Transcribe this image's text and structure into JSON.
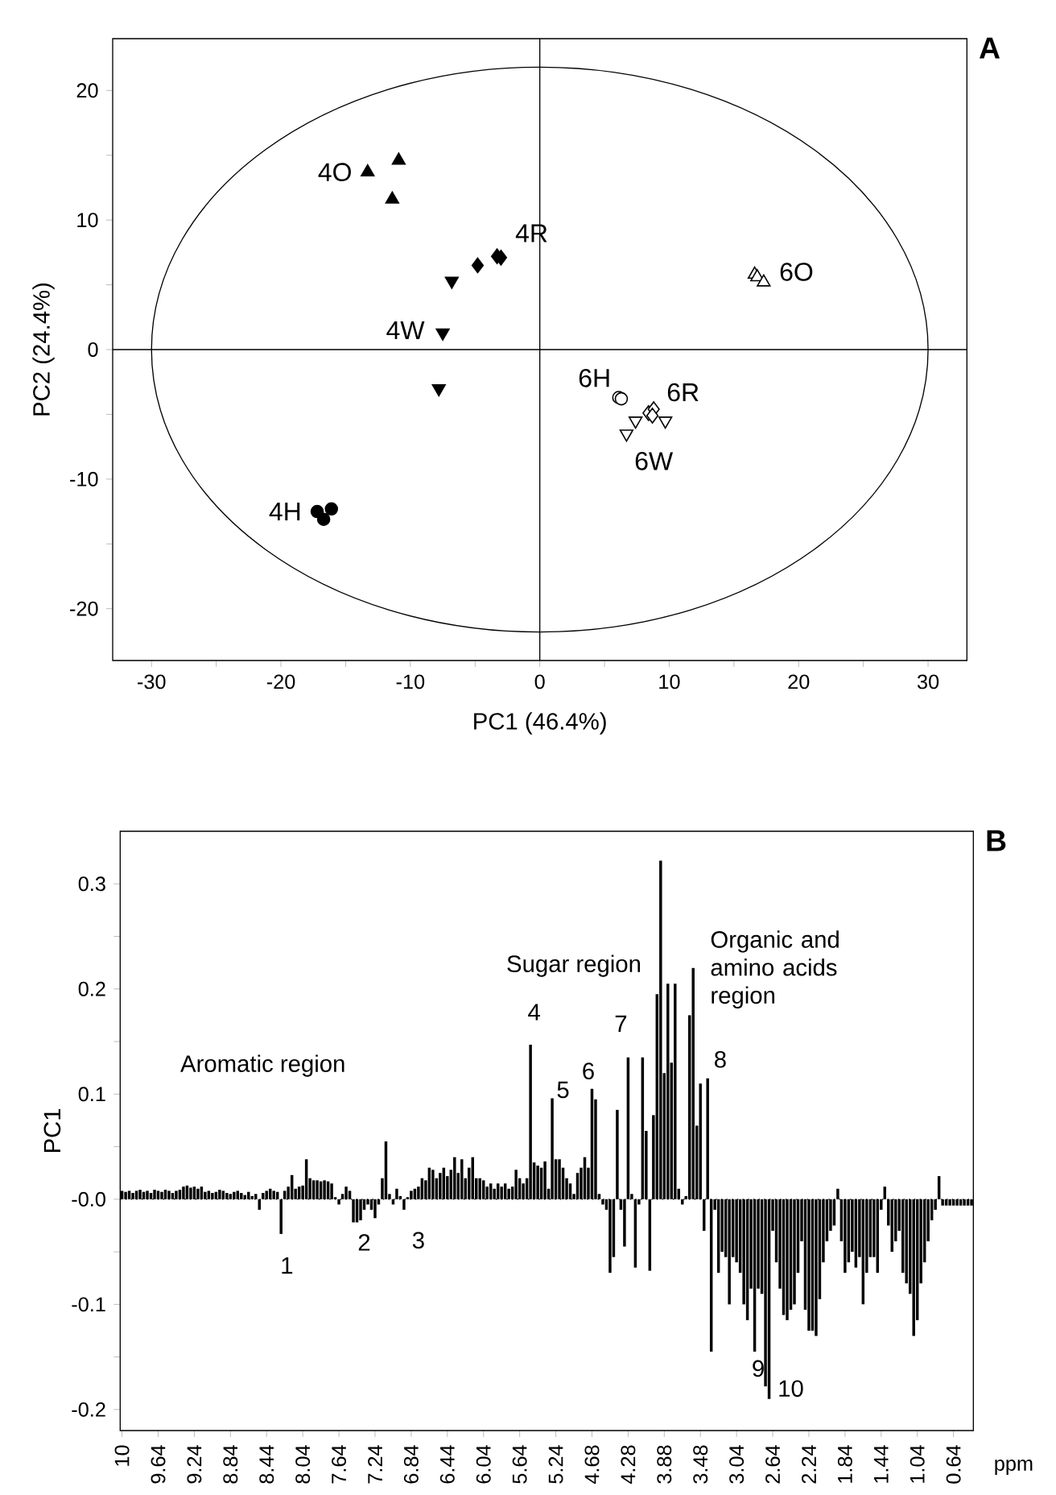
{
  "chart_data": [
    {
      "type": "scatter",
      "title": "A",
      "xlabel": "PC1 (46.4%)",
      "ylabel": "PC2 (24.4%)",
      "xlim": [
        -33,
        33
      ],
      "ylim": [
        -24,
        24
      ],
      "xticks": [
        -30,
        {
          "value": -25,
          "label": null
        },
        -20,
        {
          "value": -15,
          "label": null
        },
        -10,
        {
          "value": -5,
          "label": null
        },
        0,
        {
          "value": 5,
          "label": null
        },
        10,
        {
          "value": 15,
          "label": null
        },
        20,
        {
          "value": 25,
          "label": null
        },
        30
      ],
      "yticks": [
        -20,
        {
          "value": -15,
          "label": null
        },
        -10,
        {
          "value": -5,
          "label": null
        },
        0,
        {
          "value": 5,
          "label": null
        },
        10,
        {
          "value": 15,
          "label": null
        },
        20
      ],
      "ref_lines": [
        {
          "axis": "x",
          "value": 0
        },
        {
          "axis": "y",
          "value": 0
        }
      ],
      "series": [
        {
          "name": "4O",
          "color": "#000000",
          "marker": "triangle",
          "x": [
            -13.3,
            -10.9,
            -11.4
          ],
          "values": [
            13.7,
            14.6,
            11.6
          ]
        },
        {
          "name": "4R",
          "color": "#000000",
          "marker": "diamond",
          "x": [
            -4.8,
            -3.3,
            -3.0
          ],
          "values": [
            6.5,
            7.2,
            7.1
          ]
        },
        {
          "name": "4W",
          "color": "#000000",
          "marker": "triangle-down",
          "x": [
            -6.8,
            -7.5,
            -7.8
          ],
          "values": [
            5.3,
            1.3,
            -3.0
          ]
        },
        {
          "name": "4H",
          "color": "#000000",
          "marker": "circle",
          "x": [
            -17.2,
            -16.1,
            -16.7
          ],
          "values": [
            -12.5,
            -12.3,
            -13.1
          ]
        },
        {
          "name": "6O",
          "color": "#ffffff",
          "marker": "triangle",
          "x": [
            16.6,
            16.8,
            17.3
          ],
          "values": [
            5.8,
            5.6,
            5.2
          ]
        },
        {
          "name": "6H",
          "color": "#ffffff",
          "marker": "circle",
          "x": [
            6.1,
            6.3
          ],
          "values": [
            -3.7,
            -3.8
          ]
        },
        {
          "name": "6R",
          "color": "#ffffff",
          "marker": "diamond",
          "x": [
            8.4,
            8.8,
            8.7
          ],
          "values": [
            -4.9,
            -4.6,
            -5.1
          ]
        },
        {
          "name": "6W",
          "color": "#ffffff",
          "marker": "triangle-down",
          "x": [
            6.7,
            7.4,
            9.7
          ],
          "values": [
            -6.5,
            -5.5,
            -5.5
          ]
        }
      ]
    },
    {
      "type": "bar",
      "title": "B",
      "xlabel": "ppm",
      "ylabel": "PC1",
      "color": "#000000",
      "ylim": [
        -0.22,
        0.35
      ],
      "yticks": [
        -0.2,
        {
          "value": -0.15,
          "label": null
        },
        -0.1,
        {
          "value": -0.05,
          "label": null
        },
        {
          "value": 0,
          "label": "-0.0"
        },
        {
          "value": 0.05,
          "label": null
        },
        0.1,
        {
          "value": 0.15,
          "label": null
        },
        0.2,
        {
          "value": 0.25,
          "label": null
        },
        0.3
      ],
      "ref_lines": [
        {
          "axis": "y",
          "value": 0,
          "line_style": "dotted"
        }
      ],
      "annotations": [
        "Aromatic region",
        "Sugar region",
        "Organic and amino acids region",
        "1",
        "2",
        "3",
        "4",
        "5",
        "6",
        "7",
        "8",
        "9",
        "10"
      ],
      "categories": [
        "10",
        null,
        null,
        null,
        null,
        null,
        null,
        null,
        null,
        null,
        "9.64",
        null,
        null,
        null,
        null,
        null,
        null,
        null,
        null,
        null,
        "9.24",
        null,
        null,
        null,
        null,
        null,
        null,
        null,
        null,
        null,
        "8.84",
        null,
        null,
        null,
        null,
        null,
        null,
        null,
        null,
        null,
        "8.44",
        null,
        null,
        null,
        null,
        null,
        null,
        null,
        null,
        null,
        "8.04",
        null,
        null,
        null,
        null,
        null,
        null,
        null,
        null,
        null,
        "7.64",
        null,
        null,
        null,
        null,
        null,
        null,
        null,
        null,
        null,
        "7.24",
        null,
        null,
        null,
        null,
        null,
        null,
        null,
        null,
        null,
        "6.84",
        null,
        null,
        null,
        null,
        null,
        null,
        null,
        null,
        null,
        "6.44",
        null,
        null,
        null,
        null,
        null,
        null,
        null,
        null,
        null,
        "6.04",
        null,
        null,
        null,
        null,
        null,
        null,
        null,
        null,
        null,
        "5.64",
        null,
        null,
        null,
        null,
        null,
        null,
        null,
        null,
        null,
        "5.24",
        null,
        null,
        null,
        null,
        null,
        null,
        null,
        null,
        null,
        "4.68",
        null,
        null,
        null,
        null,
        null,
        null,
        null,
        null,
        null,
        "4.28",
        null,
        null,
        null,
        null,
        null,
        null,
        null,
        null,
        null,
        "3.88",
        null,
        null,
        null,
        null,
        null,
        null,
        null,
        null,
        null,
        "3.48",
        null,
        null,
        null,
        null,
        null,
        null,
        null,
        null,
        null,
        "3.04",
        null,
        null,
        null,
        null,
        null,
        null,
        null,
        null,
        null,
        "2.64",
        null,
        null,
        null,
        null,
        null,
        null,
        null,
        null,
        null,
        "2.24",
        null,
        null,
        null,
        null,
        null,
        null,
        null,
        null,
        null,
        "1.84",
        null,
        null,
        null,
        null,
        null,
        null,
        null,
        null,
        null,
        "1.44",
        null,
        null,
        null,
        null,
        null,
        null,
        null,
        null,
        null,
        "1.04",
        null,
        null,
        null,
        null,
        null,
        null,
        null,
        null,
        null,
        "0.64",
        null,
        null,
        null,
        null,
        null
      ],
      "values": [
        0.008,
        0.007,
        0.008,
        0.006,
        0.008,
        0.009,
        0.007,
        0.008,
        0.006,
        0.009,
        0.008,
        0.007,
        0.009,
        0.008,
        0.006,
        0.008,
        0.009,
        0.012,
        0.013,
        0.011,
        0.012,
        0.01,
        0.012,
        0.007,
        0.008,
        0.006,
        0.007,
        0.009,
        0.008,
        0.006,
        0.005,
        0.007,
        0.008,
        0.006,
        0.004,
        0.007,
        0.003,
        0.005,
        -0.01,
        0.006,
        0.008,
        0.01,
        0.008,
        0.007,
        -0.033,
        0.008,
        0.012,
        0.023,
        0.01,
        0.012,
        0.013,
        0.038,
        0.02,
        0.018,
        0.018,
        0.017,
        0.018,
        0.017,
        0.015,
        0.002,
        -0.005,
        0.005,
        0.012,
        0.008,
        -0.022,
        -0.022,
        -0.02,
        -0.01,
        -0.005,
        -0.01,
        -0.018,
        -0.005,
        0.02,
        0.055,
        0.005,
        -0.005,
        0.01,
        0.003,
        -0.01,
        0.002,
        0.008,
        0.01,
        0.012,
        0.02,
        0.018,
        0.03,
        0.028,
        0.02,
        0.025,
        0.03,
        0.022,
        0.028,
        0.04,
        0.025,
        0.038,
        0.02,
        0.03,
        0.04,
        0.02,
        0.02,
        0.018,
        0.012,
        0.015,
        0.01,
        0.015,
        0.012,
        0.015,
        0.01,
        0.012,
        0.028,
        0.02,
        0.015,
        0.02,
        0.147,
        0.035,
        0.032,
        0.03,
        0.036,
        0.01,
        0.096,
        0.038,
        0.038,
        0.03,
        0.02,
        0.015,
        0.005,
        0.025,
        0.03,
        0.04,
        0.03,
        0.105,
        0.095,
        0.005,
        -0.005,
        -0.01,
        -0.07,
        -0.055,
        0.085,
        -0.01,
        -0.045,
        0.135,
        0.005,
        -0.065,
        -0.005,
        0.135,
        0.065,
        -0.068,
        0.08,
        0.195,
        0.322,
        0.12,
        0.205,
        0.13,
        0.205,
        0.01,
        -0.005,
        0.003,
        0.175,
        0.22,
        0.07,
        0.11,
        -0.03,
        0.115,
        -0.145,
        -0.01,
        -0.07,
        -0.05,
        -0.055,
        -0.1,
        -0.055,
        -0.06,
        -0.07,
        -0.1,
        -0.115,
        -0.085,
        -0.145,
        -0.085,
        -0.09,
        -0.178,
        -0.19,
        -0.03,
        -0.06,
        -0.085,
        -0.11,
        -0.115,
        -0.105,
        -0.1,
        -0.07,
        -0.04,
        -0.105,
        -0.125,
        -0.125,
        -0.13,
        -0.095,
        -0.06,
        -0.04,
        -0.03,
        -0.025,
        0.01,
        -0.04,
        -0.07,
        -0.06,
        -0.05,
        -0.065,
        -0.055,
        -0.1,
        -0.07,
        -0.055,
        -0.055,
        -0.07,
        -0.01,
        0.012,
        -0.025,
        -0.05,
        -0.04,
        -0.03,
        -0.07,
        -0.08,
        -0.09,
        -0.13,
        -0.115,
        -0.08,
        -0.06,
        -0.04,
        -0.02,
        -0.01,
        0.022,
        -0.006,
        -0.006,
        -0.006,
        -0.006,
        -0.006,
        -0.006,
        -0.006,
        -0.006,
        -0.006
      ]
    }
  ]
}
